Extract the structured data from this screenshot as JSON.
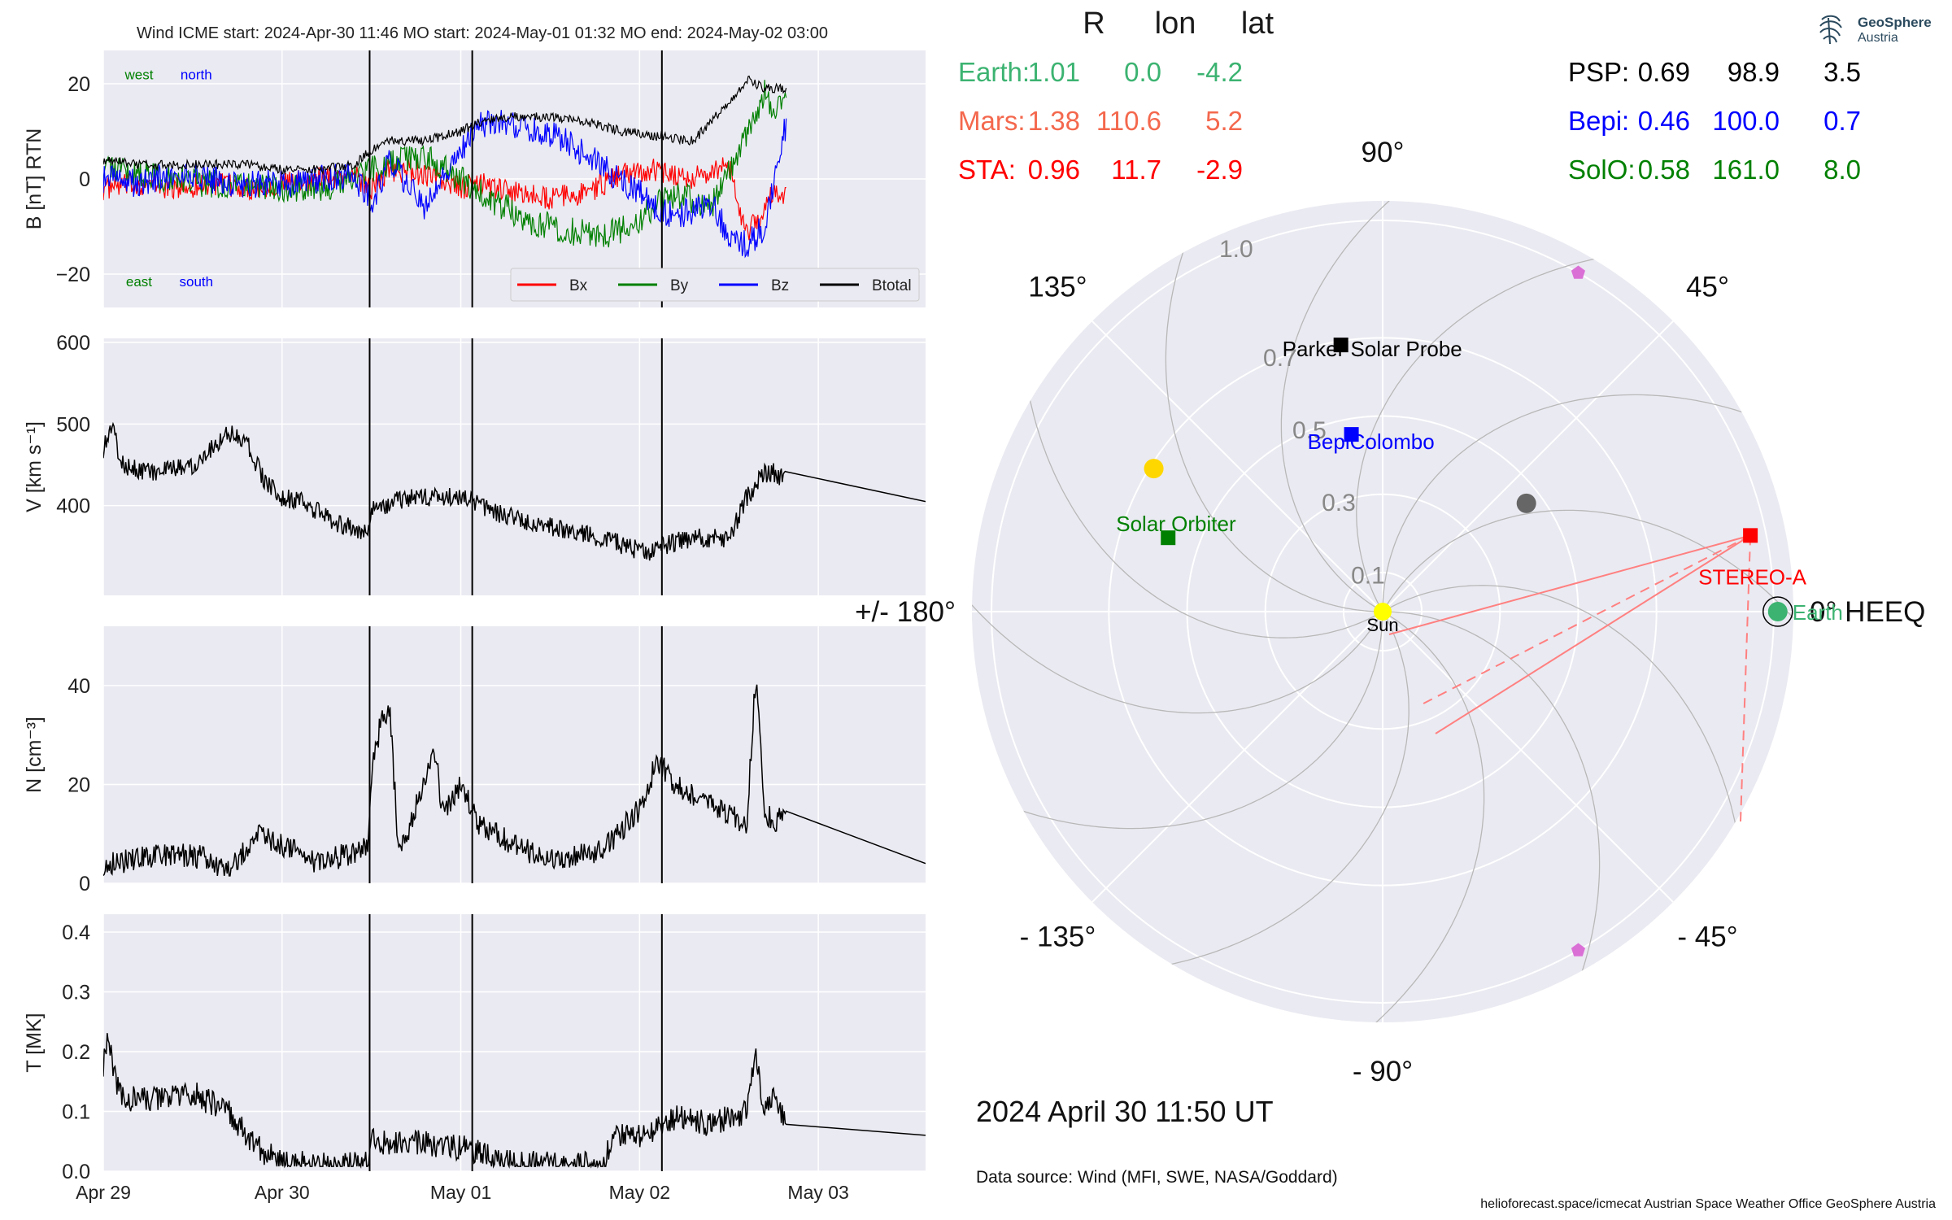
{
  "header": {
    "title": "Wind    ICME start: 2024-Apr-30 11:46   MO start: 2024-May-01 01:32   MO end: 2024-May-02 03:00"
  },
  "positions": {
    "headers": [
      "R",
      "lon",
      "lat"
    ],
    "left": [
      {
        "name": "Earth:",
        "r": "1.01",
        "lon": "0.0",
        "lat": "-4.2",
        "color": "#3cb371"
      },
      {
        "name": "Mars:",
        "r": "1.38",
        "lon": "110.6",
        "lat": "5.2",
        "color": "#f4684d"
      },
      {
        "name": "STA:",
        "r": "0.96",
        "lon": "11.7",
        "lat": "-2.9",
        "color": "#ff0000"
      }
    ],
    "right": [
      {
        "name": "PSP:",
        "r": "0.69",
        "lon": "98.9",
        "lat": "3.5",
        "color": "#000000"
      },
      {
        "name": "Bepi:",
        "r": "0.46",
        "lon": "100.0",
        "lat": "0.7",
        "color": "#0000ff"
      },
      {
        "name": "SolO:",
        "r": "0.58",
        "lon": "161.0",
        "lat": "8.0",
        "color": "#008000"
      }
    ]
  },
  "logo": {
    "name": "GeoSphere",
    "sub": "Austria"
  },
  "date_text": "2024 April 30  11:50 UT",
  "source_text": "Data source: Wind (MFI, SWE, NASA/Goddard)",
  "footer_text": "helioforecast.space/icmecat   Austrian Space Weather Office   GeoSphere Austria",
  "colors": {
    "panel_bg": "#eaeaf2",
    "grid": "#ffffff",
    "bx": "#ff0000",
    "by": "#008000",
    "bz": "#0000ff",
    "btotal": "#000000"
  },
  "chart_data": [
    {
      "type": "line",
      "id": "b",
      "ylabel": "B [nT] RTN",
      "ylim": [
        -27,
        27
      ],
      "yticks": [
        -20,
        0,
        20
      ],
      "ytick_labels": [
        "−20",
        "0",
        "20"
      ],
      "xlim": [
        0,
        4.6
      ],
      "xticks": [
        0,
        1,
        2,
        3,
        4
      ],
      "event_lines": [
        1.49,
        2.064,
        3.125
      ],
      "legend_position": "lower right",
      "annotations": [
        {
          "text": "west",
          "x": 0.2,
          "y": 22,
          "color": "#008000"
        },
        {
          "text": "north",
          "x": 0.52,
          "y": 22,
          "color": "#0000ff"
        },
        {
          "text": "east",
          "x": 0.2,
          "y": -21.5,
          "color": "#008000"
        },
        {
          "text": "south",
          "x": 0.52,
          "y": -21.5,
          "color": "#0000ff"
        }
      ],
      "series": [
        {
          "name": "Bx",
          "color": "#ff0000",
          "x": [
            0.0,
            0.2,
            0.4,
            0.6,
            0.8,
            1.0,
            1.2,
            1.4,
            1.5,
            1.6,
            1.8,
            2.0,
            2.1,
            2.3,
            2.5,
            2.7,
            2.9,
            3.1,
            3.3,
            3.5,
            3.6,
            3.75,
            3.82
          ],
          "y": [
            -2,
            -1,
            -2,
            -1,
            -2,
            -1,
            0,
            1,
            -2,
            2,
            1,
            -2,
            -1,
            -3,
            -4,
            -3,
            1,
            2,
            0,
            3,
            -12,
            -3,
            -3
          ],
          "noise": 2.5
        },
        {
          "name": "By",
          "color": "#008000",
          "x": [
            0.0,
            0.2,
            0.4,
            0.6,
            0.8,
            1.0,
            1.2,
            1.4,
            1.5,
            1.6,
            1.8,
            2.0,
            2.2,
            2.4,
            2.6,
            2.8,
            3.0,
            3.1,
            3.2,
            3.4,
            3.6,
            3.7,
            3.75,
            3.82
          ],
          "y": [
            3,
            1,
            0,
            -1,
            -1,
            -2,
            -2,
            0,
            2,
            3,
            5,
            0,
            -5,
            -9,
            -11,
            -12,
            -9,
            -5,
            -3,
            -6,
            10,
            18,
            15,
            16
          ],
          "noise": 3
        },
        {
          "name": "Bz",
          "color": "#0000ff",
          "x": [
            0.0,
            0.2,
            0.4,
            0.6,
            0.8,
            1.0,
            1.2,
            1.4,
            1.5,
            1.6,
            1.8,
            2.0,
            2.1,
            2.25,
            2.4,
            2.55,
            2.7,
            2.85,
            3.0,
            3.1,
            3.2,
            3.4,
            3.5,
            3.6,
            3.7,
            3.8,
            3.82
          ],
          "y": [
            0,
            -1,
            1,
            0,
            -1,
            -1,
            0,
            1,
            -5,
            4,
            -6,
            6,
            11,
            12,
            10,
            9,
            5,
            1,
            -3,
            -6,
            -8,
            -5,
            -12,
            -14,
            -10,
            8,
            12
          ],
          "noise": 3
        },
        {
          "name": "Btotal",
          "color": "#000000",
          "x": [
            0.0,
            0.2,
            0.4,
            0.6,
            0.8,
            1.0,
            1.2,
            1.4,
            1.5,
            1.6,
            1.8,
            2.0,
            2.1,
            2.3,
            2.5,
            2.7,
            2.9,
            3.1,
            3.3,
            3.5,
            3.6,
            3.7,
            3.82
          ],
          "y": [
            4,
            3,
            3,
            3,
            3,
            2,
            2,
            3,
            6,
            8,
            8,
            10,
            12,
            13,
            13,
            12,
            10,
            9,
            8,
            16,
            21,
            19,
            19
          ],
          "noise": 1
        }
      ]
    },
    {
      "type": "line",
      "id": "v",
      "ylabel": "V [km s⁻¹]",
      "ylim": [
        290,
        605
      ],
      "yticks": [
        400,
        500,
        600
      ],
      "ytick_labels": [
        "400",
        "500",
        "600"
      ],
      "xlim": [
        0,
        4.6
      ],
      "xticks": [
        0,
        1,
        2,
        3,
        4
      ],
      "event_lines": [
        1.49,
        2.064,
        3.125
      ],
      "series": [
        {
          "name": "V",
          "color": "#000000",
          "x": [
            0.0,
            0.05,
            0.1,
            0.3,
            0.5,
            0.6,
            0.7,
            0.8,
            0.9,
            1.0,
            1.1,
            1.3,
            1.48,
            1.5,
            1.7,
            2.0,
            2.2,
            2.5,
            2.8,
            3.0,
            3.05,
            3.1,
            3.3,
            3.5,
            3.6,
            3.7,
            3.75,
            3.82,
            4.6
          ],
          "y": [
            470,
            500,
            450,
            440,
            450,
            470,
            490,
            480,
            430,
            410,
            405,
            380,
            365,
            395,
            410,
            410,
            390,
            375,
            360,
            345,
            340,
            350,
            360,
            360,
            410,
            440,
            440,
            430,
            405
          ],
          "noise": 12
        }
      ]
    },
    {
      "type": "line",
      "id": "n",
      "ylabel": "N [cm⁻³]",
      "ylim": [
        0,
        52
      ],
      "yticks": [
        0,
        20,
        40
      ],
      "ytick_labels": [
        "0",
        "20",
        "40"
      ],
      "xlim": [
        0,
        4.6
      ],
      "xticks": [
        0,
        1,
        2,
        3,
        4
      ],
      "event_lines": [
        1.49,
        2.064,
        3.125
      ],
      "series": [
        {
          "name": "N",
          "color": "#000000",
          "x": [
            0.0,
            0.2,
            0.4,
            0.6,
            0.7,
            0.85,
            1.0,
            1.2,
            1.48,
            1.5,
            1.55,
            1.6,
            1.65,
            1.7,
            1.85,
            1.9,
            2.0,
            2.1,
            2.2,
            2.4,
            2.6,
            2.8,
            3.0,
            3.1,
            3.2,
            3.3,
            3.5,
            3.6,
            3.65,
            3.7,
            3.75,
            3.82,
            4.6
          ],
          "y": [
            4,
            5,
            6,
            5,
            2,
            10,
            8,
            4,
            7,
            22,
            32,
            36,
            8,
            10,
            28,
            14,
            20,
            12,
            10,
            6,
            5,
            7,
            15,
            25,
            20,
            18,
            14,
            12,
            42,
            15,
            12,
            16,
            4
          ],
          "noise": 2.5
        }
      ]
    },
    {
      "type": "line",
      "id": "t",
      "ylabel": "T [MK]",
      "ylim": [
        0,
        0.43
      ],
      "yticks": [
        0,
        0.1,
        0.2,
        0.3,
        0.4
      ],
      "ytick_labels": [
        "0.0",
        "0.1",
        "0.2",
        "0.3",
        "0.4"
      ],
      "xlim": [
        0,
        4.6
      ],
      "xticks": [
        0,
        1,
        2,
        3,
        4
      ],
      "xtick_labels": [
        "Apr 29",
        "Apr 30",
        "May 01",
        "May 02",
        "May 03"
      ],
      "event_lines": [
        1.49,
        2.064,
        3.125
      ],
      "series": [
        {
          "name": "T",
          "color": "#000000",
          "x": [
            0.0,
            0.02,
            0.1,
            0.3,
            0.5,
            0.7,
            0.8,
            0.9,
            1.0,
            1.2,
            1.4,
            1.48,
            1.5,
            1.7,
            2.0,
            2.2,
            2.4,
            2.6,
            2.8,
            2.85,
            3.0,
            3.1,
            3.2,
            3.4,
            3.6,
            3.65,
            3.7,
            3.75,
            3.82,
            4.6
          ],
          "y": [
            0.18,
            0.22,
            0.12,
            0.12,
            0.13,
            0.1,
            0.06,
            0.03,
            0.015,
            0.01,
            0.01,
            0.012,
            0.05,
            0.05,
            0.04,
            0.02,
            0.012,
            0.01,
            0.012,
            0.06,
            0.06,
            0.07,
            0.09,
            0.08,
            0.1,
            0.2,
            0.1,
            0.13,
            0.08,
            0.06
          ],
          "noise": 0.022
        }
      ]
    },
    {
      "type": "scatter",
      "id": "polar",
      "projection": "polar",
      "r_max": 1.05,
      "r_grid": [
        0.1,
        0.3,
        0.5,
        0.7,
        1.0
      ],
      "r_grid_labels": [
        "0.1",
        "0.3",
        "0.5",
        "0.7",
        "1.0"
      ],
      "angle_labels": [
        {
          "deg": 0,
          "text": "0° HEEQ"
        },
        {
          "deg": 45,
          "text": "45°"
        },
        {
          "deg": 90,
          "text": "90°"
        },
        {
          "deg": 135,
          "text": "135°"
        },
        {
          "deg": 180,
          "text": "+/- 180°"
        },
        {
          "deg": -135,
          "text": "- 135°"
        },
        {
          "deg": -90,
          "text": "- 90°"
        },
        {
          "deg": -45,
          "text": "- 45°"
        }
      ],
      "bodies": [
        {
          "name": "Sun",
          "label": "Sun",
          "r": 0.0,
          "lon": 0,
          "color": "#ffff00",
          "marker": "circle",
          "label_color": "#000000"
        },
        {
          "name": "Earth",
          "label": "Earth",
          "r": 1.01,
          "lon": 0.0,
          "color": "#3cb371",
          "marker": "circle",
          "label_color": "#3cb371"
        },
        {
          "name": "STEREO-A",
          "label": "STEREO-A",
          "r": 0.96,
          "lon": 11.7,
          "color": "#ff0000",
          "marker": "square",
          "label_color": "#ff0000"
        },
        {
          "name": "Parker Solar Probe",
          "label": "Parker Solar Probe",
          "r": 0.69,
          "lon": 98.9,
          "color": "#000000",
          "marker": "square",
          "label_color": "#000000"
        },
        {
          "name": "BepiColombo",
          "label": "BepiColombo",
          "r": 0.46,
          "lon": 100.0,
          "color": "#0000ff",
          "marker": "square",
          "label_color": "#0000ff"
        },
        {
          "name": "Solar Orbiter",
          "label": "Solar Orbiter",
          "r": 0.58,
          "lon": 161.0,
          "color": "#008000",
          "marker": "square",
          "label_color": "#008000"
        },
        {
          "name": "Mercury",
          "label": "",
          "r": 0.69,
          "lon": 148,
          "color": "#ffd700",
          "marker": "circle",
          "label_color": "#000000"
        },
        {
          "name": "Venus",
          "label": "",
          "r": 0.46,
          "lon": 37,
          "color": "#666666",
          "marker": "circle",
          "label_color": "#000000"
        },
        {
          "name": "Mars",
          "label": "",
          "r": 1.38,
          "lon": 110.6,
          "color": "#f4684d",
          "marker": "circle",
          "label_color": "#000000"
        },
        {
          "name": "L4",
          "label": "",
          "r": 1.0,
          "lon": 60,
          "color": "#da70d6",
          "marker": "pentagon",
          "label_color": "#000000"
        },
        {
          "name": "L5",
          "label": "",
          "r": 1.0,
          "lon": -60,
          "color": "#da70d6",
          "marker": "pentagon",
          "label_color": "#000000"
        }
      ]
    }
  ]
}
